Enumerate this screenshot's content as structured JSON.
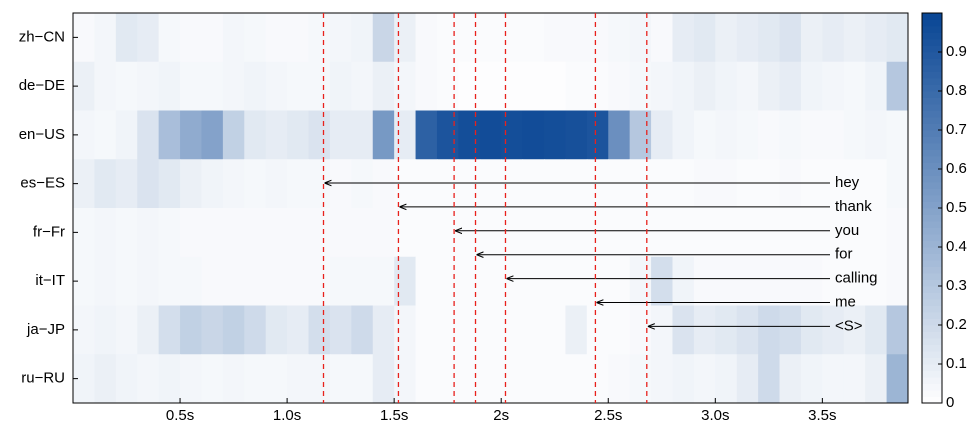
{
  "chart_data": {
    "type": "heatmap",
    "rows": [
      "zh−CN",
      "de−DE",
      "en−US",
      "es−ES",
      "fr−Fr",
      "it−IT",
      "ja−JP",
      "ru−RU"
    ],
    "bins": [
      0,
      0.1,
      0.2,
      0.3,
      0.4,
      0.5,
      0.6,
      0.7,
      0.8,
      0.9,
      1,
      1.1,
      1.2,
      1.3,
      1.4,
      1.5,
      1.6,
      1.7,
      1.8,
      1.9,
      2,
      2.1,
      2.2,
      2.3,
      2.4,
      2.5,
      2.6,
      2.7,
      2.8,
      2.9,
      3,
      3.1,
      3.2,
      3.3,
      3.4,
      3.5,
      3.6,
      3.7,
      3.8,
      3.9
    ],
    "values": [
      [
        0.03,
        0.05,
        0.12,
        0.1,
        0.04,
        0.03,
        0.03,
        0.05,
        0.04,
        0.03,
        0.03,
        0.04,
        0.05,
        0.06,
        0.22,
        0.08,
        0.03,
        0.02,
        0.02,
        0.02,
        0.02,
        0.02,
        0.03,
        0.03,
        0.03,
        0.04,
        0.05,
        0.03,
        0.1,
        0.12,
        0.08,
        0.1,
        0.12,
        0.15,
        0.08,
        0.1,
        0.08,
        0.1,
        0.12
      ],
      [
        0.08,
        0.05,
        0.04,
        0.05,
        0.06,
        0.04,
        0.04,
        0.05,
        0.06,
        0.05,
        0.04,
        0.04,
        0.06,
        0.05,
        0.08,
        0.05,
        0.03,
        0.02,
        0.01,
        0.01,
        0.01,
        0.01,
        0.01,
        0.02,
        0.02,
        0.03,
        0.04,
        0.05,
        0.06,
        0.08,
        0.06,
        0.05,
        0.08,
        0.1,
        0.06,
        0.05,
        0.04,
        0.06,
        0.3
      ],
      [
        0.05,
        0.04,
        0.06,
        0.15,
        0.35,
        0.45,
        0.5,
        0.25,
        0.12,
        0.1,
        0.12,
        0.15,
        0.1,
        0.1,
        0.55,
        0.1,
        0.85,
        0.92,
        0.95,
        0.96,
        0.95,
        0.96,
        0.95,
        0.94,
        0.92,
        0.6,
        0.3,
        0.1,
        0.06,
        0.04,
        0.05,
        0.04,
        0.03,
        0.04,
        0.03,
        0.03,
        0.04,
        0.05,
        0.04
      ],
      [
        0.08,
        0.12,
        0.1,
        0.15,
        0.12,
        0.08,
        0.06,
        0.05,
        0.04,
        0.05,
        0.04,
        0.04,
        0.03,
        0.04,
        0.03,
        0.02,
        0.02,
        0.02,
        0.02,
        0.02,
        0.02,
        0.02,
        0.02,
        0.02,
        0.02,
        0.02,
        0.02,
        0.02,
        0.02,
        0.03,
        0.03,
        0.02,
        0.02,
        0.03,
        0.02,
        0.02,
        0.02,
        0.02,
        0.04
      ],
      [
        0.04,
        0.05,
        0.04,
        0.05,
        0.04,
        0.03,
        0.03,
        0.03,
        0.03,
        0.03,
        0.03,
        0.03,
        0.03,
        0.03,
        0.03,
        0.02,
        0.02,
        0.02,
        0.02,
        0.02,
        0.02,
        0.02,
        0.02,
        0.02,
        0.02,
        0.02,
        0.02,
        0.02,
        0.02,
        0.02,
        0.02,
        0.02,
        0.02,
        0.02,
        0.02,
        0.02,
        0.02,
        0.02,
        0.03
      ],
      [
        0.04,
        0.05,
        0.04,
        0.05,
        0.04,
        0.04,
        0.03,
        0.03,
        0.03,
        0.03,
        0.03,
        0.03,
        0.04,
        0.04,
        0.04,
        0.12,
        0.02,
        0.02,
        0.02,
        0.02,
        0.02,
        0.02,
        0.02,
        0.02,
        0.02,
        0.02,
        0.05,
        0.18,
        0.06,
        0.03,
        0.03,
        0.03,
        0.03,
        0.03,
        0.03,
        0.02,
        0.02,
        0.02,
        0.03
      ],
      [
        0.05,
        0.06,
        0.05,
        0.08,
        0.18,
        0.25,
        0.22,
        0.25,
        0.2,
        0.12,
        0.1,
        0.18,
        0.15,
        0.2,
        0.1,
        0.05,
        0.02,
        0.02,
        0.02,
        0.02,
        0.02,
        0.02,
        0.02,
        0.08,
        0.02,
        0.02,
        0.03,
        0.05,
        0.15,
        0.1,
        0.12,
        0.15,
        0.2,
        0.18,
        0.12,
        0.1,
        0.08,
        0.12,
        0.3
      ],
      [
        0.06,
        0.08,
        0.06,
        0.05,
        0.06,
        0.05,
        0.04,
        0.05,
        0.04,
        0.04,
        0.05,
        0.05,
        0.04,
        0.04,
        0.1,
        0.05,
        0.02,
        0.02,
        0.02,
        0.02,
        0.02,
        0.02,
        0.02,
        0.02,
        0.02,
        0.03,
        0.04,
        0.05,
        0.06,
        0.05,
        0.06,
        0.1,
        0.2,
        0.08,
        0.06,
        0.05,
        0.05,
        0.08,
        0.4
      ]
    ],
    "xlim": [
      0,
      3.9
    ],
    "xticks": [
      {
        "value": 0.5,
        "label": "0.5s"
      },
      {
        "value": 1,
        "label": "1.0s"
      },
      {
        "value": 1.5,
        "label": "1.5s"
      },
      {
        "value": 2,
        "label": "2s"
      },
      {
        "value": 2.5,
        "label": "2.5s"
      },
      {
        "value": 3,
        "label": "3.0s"
      },
      {
        "value": 3.5,
        "label": "3.5s"
      }
    ],
    "clim": [
      0,
      1
    ],
    "cticks": [
      0,
      0.1,
      0.2,
      0.3,
      0.4,
      0.5,
      0.6,
      0.7,
      0.8,
      0.9
    ],
    "colormap": [
      "#ffffff",
      "#084594"
    ],
    "marker_color": "#e8211c",
    "annotations": [
      {
        "label": "hey",
        "time": 1.17
      },
      {
        "label": "thank",
        "time": 1.52
      },
      {
        "label": "you",
        "time": 1.78
      },
      {
        "label": "for",
        "time": 1.88
      },
      {
        "label": "calling",
        "time": 2.02
      },
      {
        "label": "me",
        "time": 2.44
      },
      {
        "label": "<S>",
        "time": 2.68
      }
    ]
  }
}
